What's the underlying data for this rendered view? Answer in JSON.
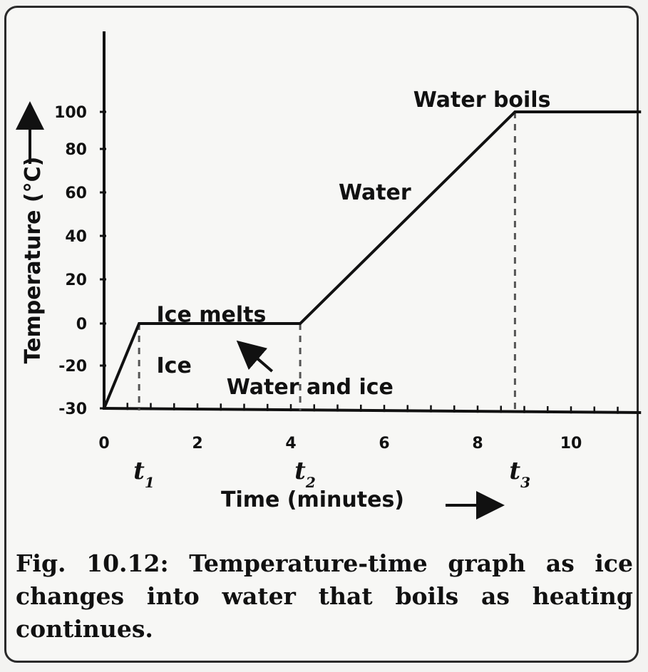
{
  "chart_data": {
    "type": "line",
    "xlabel": "Time (minutes)",
    "ylabel": "Temperature (°C)",
    "xlim": [
      0,
      11.5
    ],
    "ylim": [
      -30,
      100
    ],
    "x_ticks": [
      0,
      2,
      4,
      6,
      8,
      10
    ],
    "y_ticks": [
      -30,
      -20,
      0,
      20,
      40,
      60,
      80,
      100
    ],
    "y_tick_labels": [
      "-30",
      "-20",
      "0",
      "20",
      "40",
      "60",
      "80",
      "100"
    ],
    "series": [
      {
        "x": [
          0,
          0.75,
          4.2,
          8.8,
          11.5
        ],
        "y": [
          -30,
          0,
          0,
          100,
          100
        ]
      }
    ],
    "time_markers": [
      {
        "letter": "t",
        "sub": "1",
        "x": 0.75
      },
      {
        "letter": "t",
        "sub": "2",
        "x": 4.2
      },
      {
        "letter": "t",
        "sub": "3",
        "x": 8.8
      }
    ],
    "annotations": [
      {
        "text": "Ice",
        "x": 1.0,
        "y": -20
      },
      {
        "text": "Ice melts",
        "x": 1.0,
        "y": 4
      },
      {
        "text": "Water and ice",
        "x": 2.5,
        "y": -25
      },
      {
        "text": "Water",
        "x": 4.9,
        "y": 60
      },
      {
        "text": "Water boils",
        "x": 6.5,
        "y": 106
      }
    ]
  },
  "caption": "Fig. 10.12: Temperature-time graph as ice changes into water that boils as heating continues."
}
